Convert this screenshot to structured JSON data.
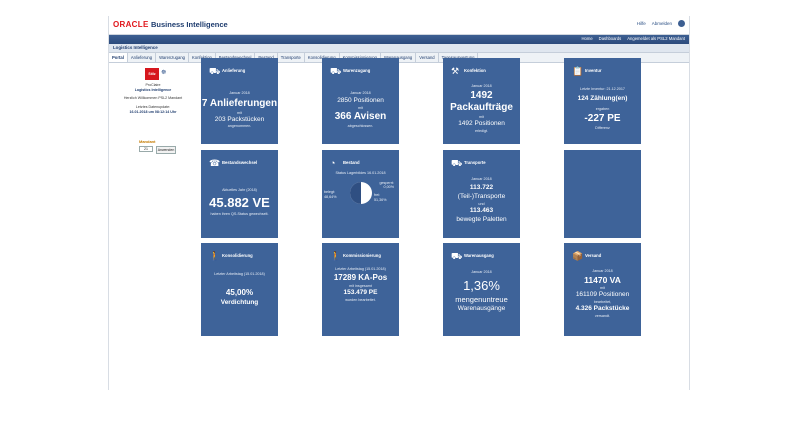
{
  "header": {
    "logo": "ORACLE",
    "title": "Business Intelligence",
    "links": [
      "Hilfe",
      "Abmelden"
    ]
  },
  "nav": {
    "home": "Home",
    "dashboards": "Dashboards",
    "user": "Angemeldet als PSL2 Mandant"
  },
  "subtitle": "Logistics Intelligence",
  "tabs": [
    "Portal",
    "Anlieferung",
    "Warenzugang",
    "Konfektion",
    "Bestandswechsel",
    "Bestand",
    "Transporte",
    "Konsolidierung",
    "Kommissionierung",
    "Warenausgang",
    "Versand",
    "Tagesauswertung"
  ],
  "sidebar": {
    "brand": "Stilz",
    "brand_sub": "ProClaire",
    "product": "Logistics Intelligence",
    "welcome": "Herzlich Willkommen PSL2 Mandant",
    "update_label": "Letztes Datenupdate:",
    "update_value": "16.01.2018 um 08:12:14 Uhr",
    "mandant_label": "Mandant",
    "mandant_value": "21",
    "apply": "Anwenden"
  },
  "tiles": {
    "anlieferung": {
      "title": "Anlieferung",
      "l1": "Januar 2018",
      "l2": "7 Anlieferungen",
      "l3": "mit",
      "l4": "203 Packstücken",
      "l5": "angenommen."
    },
    "warenzugang": {
      "title": "Warenzugang",
      "l1": "Januar 2018",
      "l2": "2850 Positionen",
      "l3": "mit",
      "l4": "366 Avisen",
      "l5": "abgeschlossen."
    },
    "konfektion": {
      "title": "Konfektion",
      "l1": "Januar 2018",
      "l2": "1492",
      "l3": "Packaufträge",
      "l4": "mit",
      "l5": "1492 Positionen",
      "l6": "erledigt."
    },
    "inventur": {
      "title": "Inventur",
      "l1": "Letzte Inventur: 21.12.2017",
      "l2": "124 Zählung(en)",
      "l3": "ergaben",
      "l4": "-227 PE",
      "l5": "Differenz"
    },
    "bestandswechsel": {
      "title": "Bestandswechsel",
      "l1": "Aktuelles Jahr (2018)",
      "l2": "45.882 VE",
      "l3": "haben ihren QS-Status gewechselt."
    },
    "bestand": {
      "title": "Bestand",
      "l1": "Status Lagerbildes 16.01.2018",
      "l2": "gesperrt:",
      "l3": "0,00%",
      "l4": "belegt:",
      "l5": "48,64%",
      "l6": "frei:",
      "l7": "51,36%"
    },
    "transporte": {
      "title": "Transporte",
      "l1": "Januar 2018",
      "l2": "113.722",
      "l3": "(Teil-)Transporte",
      "l4": "und",
      "l5": "113.463",
      "l6": "bewegte Paletten"
    },
    "konsolidierung": {
      "title": "Konsolidierung",
      "l1": "Letzter Arbeitstag (15.01.2018)",
      "l2": "45,00%",
      "l3": "Verdichtung"
    },
    "kommissionierung": {
      "title": "Kommissionierung",
      "l1": "Letzter Arbeitstag (15.01.2018)",
      "l2": "17289 KA-Pos",
      "l3": "mit insgesamt",
      "l4": "153.479 PE",
      "l5": "wurden bearbeitet."
    },
    "warenausgang": {
      "title": "Warenausgang",
      "l1": "Januar 2018",
      "l2": "1,36%",
      "l3": "mengenuntreue",
      "l4": "Warenausgänge"
    },
    "versand": {
      "title": "Versand",
      "l1": "Januar 2018",
      "l2": "11470 VA",
      "l3": "mit",
      "l4": "161109 Positionen",
      "l5": "bearbeitet,",
      "l6": "4.326 Packstücke",
      "l7": "versandt."
    }
  },
  "colors": {
    "tile": "#3e6399",
    "nav": "#2b4a7c",
    "accent": "#e0161b"
  },
  "icons": [
    "truck-icon",
    "truck-icon",
    "factory-icon",
    "clipboard-icon",
    "phone-icon",
    "pie-chart-icon",
    "truck-icon",
    "person-icon",
    "person-icon",
    "truck-icon",
    "box-icon"
  ]
}
